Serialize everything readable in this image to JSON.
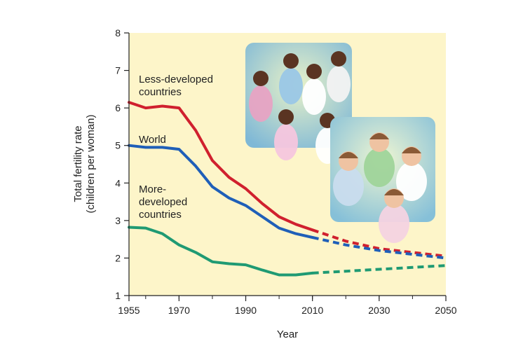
{
  "chart_data": {
    "type": "line",
    "title": "",
    "xlabel": "Year",
    "ylabel": [
      "Total fertility rate",
      "(children per woman)"
    ],
    "xlim": [
      1955,
      2050
    ],
    "ylim": [
      1,
      8
    ],
    "x_ticks": [
      1955,
      1970,
      1990,
      2010,
      2030,
      2050
    ],
    "y_ticks": [
      1,
      2,
      3,
      4,
      5,
      6,
      7,
      8
    ],
    "projection_start": 2010,
    "series": [
      {
        "name": "Less-developed countries",
        "label_lines": [
          "Less-developed",
          "countries"
        ],
        "color": "#d0202e",
        "x": [
          1955,
          1960,
          1965,
          1970,
          1975,
          1980,
          1985,
          1990,
          1995,
          2000,
          2005,
          2010,
          2020,
          2030,
          2040,
          2050
        ],
        "y": [
          6.15,
          6.0,
          6.05,
          6.0,
          5.4,
          4.6,
          4.15,
          3.85,
          3.45,
          3.1,
          2.9,
          2.75,
          2.45,
          2.25,
          2.15,
          2.05
        ]
      },
      {
        "name": "World",
        "label_lines": [
          "World"
        ],
        "color": "#1f5fb8",
        "x": [
          1955,
          1960,
          1965,
          1970,
          1975,
          1980,
          1985,
          1990,
          1995,
          2000,
          2005,
          2010,
          2020,
          2030,
          2040,
          2050
        ],
        "y": [
          5.0,
          4.95,
          4.95,
          4.9,
          4.45,
          3.9,
          3.6,
          3.4,
          3.1,
          2.8,
          2.65,
          2.55,
          2.35,
          2.2,
          2.1,
          2.0
        ]
      },
      {
        "name": "More-developed countries",
        "label_lines": [
          "More-",
          "developed",
          "countries"
        ],
        "color": "#1f9a73",
        "x": [
          1955,
          1960,
          1965,
          1970,
          1975,
          1980,
          1985,
          1990,
          1995,
          2000,
          2005,
          2010,
          2020,
          2030,
          2040,
          2050
        ],
        "y": [
          2.82,
          2.8,
          2.65,
          2.35,
          2.15,
          1.9,
          1.85,
          1.82,
          1.68,
          1.55,
          1.55,
          1.6,
          1.65,
          1.7,
          1.75,
          1.8
        ]
      }
    ]
  },
  "colors": {
    "plot_background": "#fdf5c9",
    "axis": "#222222"
  },
  "photos": [
    {
      "name": "less-developed-family-photo"
    },
    {
      "name": "more-developed-family-photo"
    }
  ]
}
